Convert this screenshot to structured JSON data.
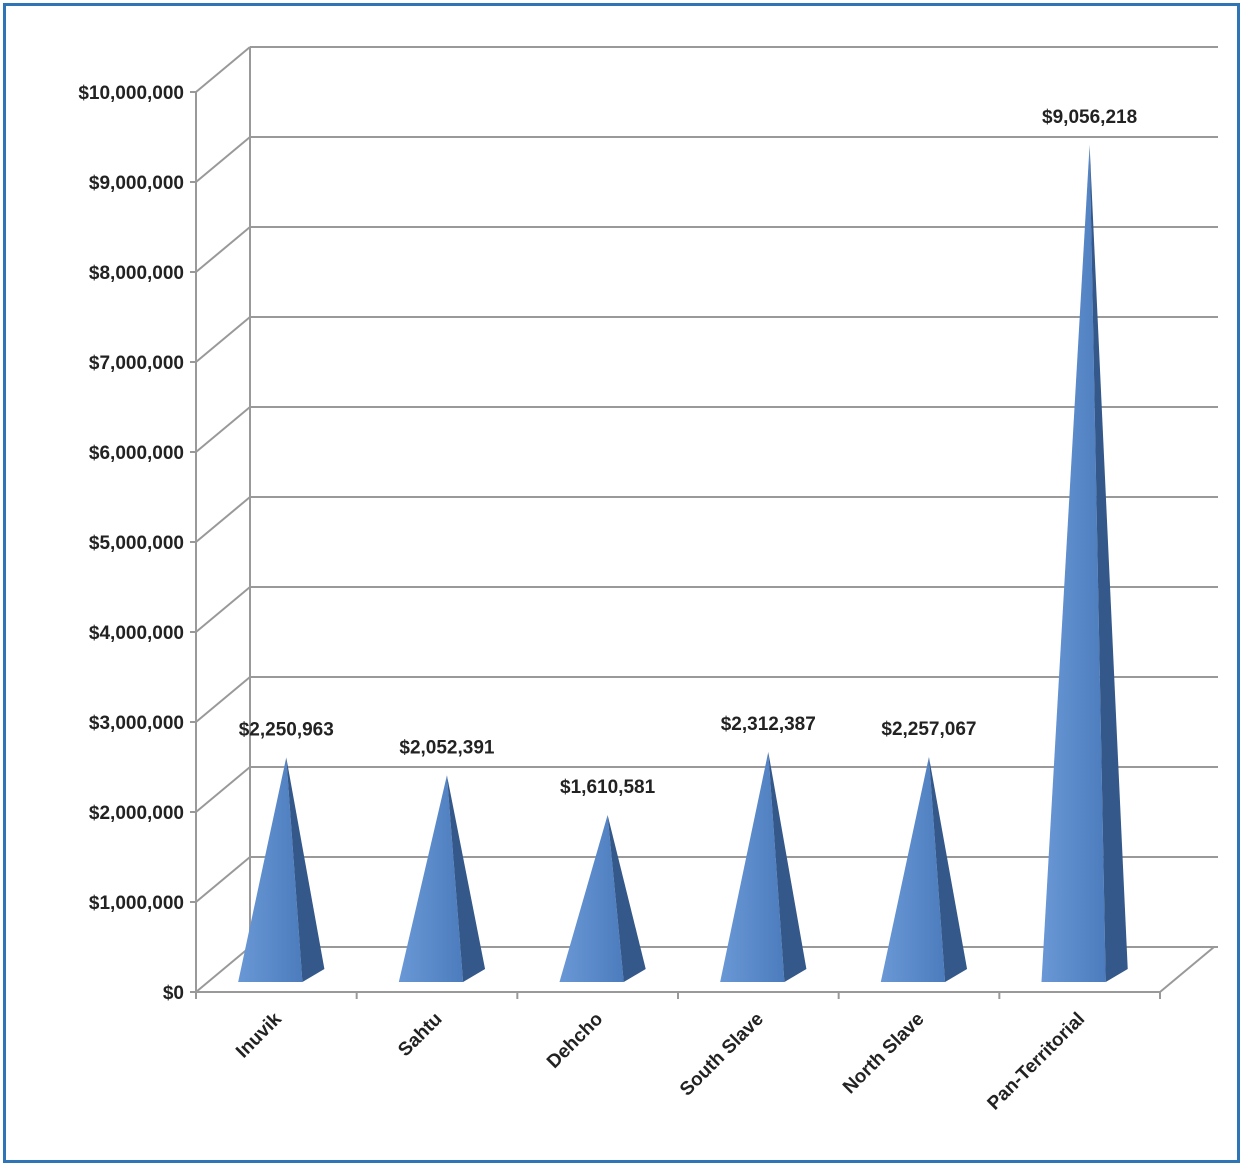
{
  "chart_data": {
    "type": "bar",
    "style": "3d-pyramid",
    "title": "",
    "xlabel": "",
    "ylabel": "",
    "categories": [
      "Inuvik",
      "Sahtu",
      "Dehcho",
      "South Slave",
      "North Slave",
      "Pan-Territorial"
    ],
    "values": [
      2250963,
      2052391,
      1610581,
      2312387,
      2257067,
      9056218
    ],
    "data_labels": [
      "$2,250,963",
      "$2,052,391",
      "$1,610,581",
      "$2,312,387",
      "$2,257,067",
      "$9,056,218"
    ],
    "y_ticks": [
      "$0",
      "$1,000,000",
      "$2,000,000",
      "$3,000,000",
      "$4,000,000",
      "$5,000,000",
      "$6,000,000",
      "$7,000,000",
      "$8,000,000",
      "$9,000,000",
      "$10,000,000"
    ],
    "ylim": [
      0,
      10000000
    ],
    "grid": true,
    "legend": "none",
    "colors": {
      "front": "#5b8bcb",
      "side": "#34588a",
      "grid": "#999999",
      "frame": "#2f74b5"
    }
  }
}
